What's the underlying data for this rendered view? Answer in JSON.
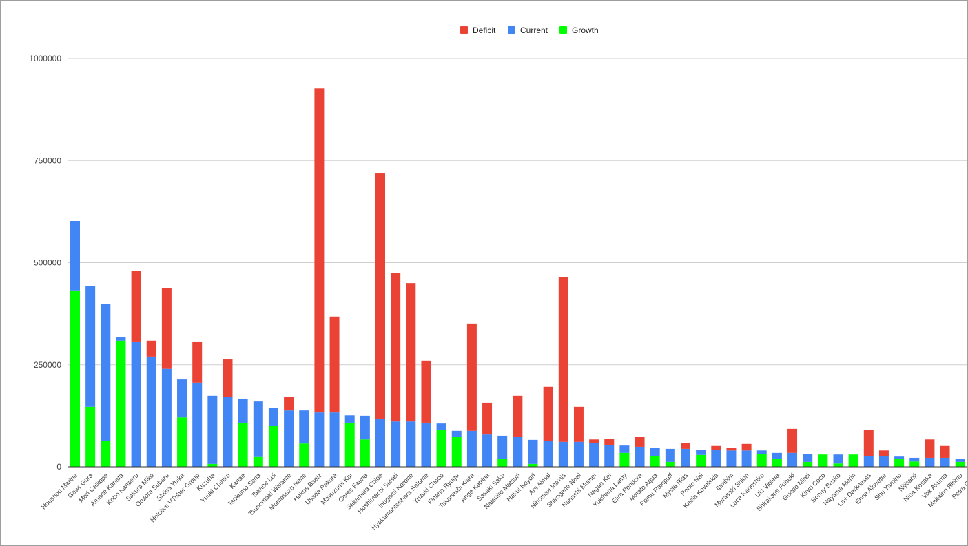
{
  "chart_data": {
    "type": "bar",
    "stacked": true,
    "title": "",
    "xlabel": "",
    "ylabel": "",
    "ylim": [
      0,
      1000000
    ],
    "yticks": [
      "0",
      "250000",
      "500000",
      "750000",
      "1000000"
    ],
    "ytick_values": [
      0,
      250000,
      500000,
      750000,
      1000000
    ],
    "grid": true,
    "legend_position": "top-center",
    "categories": [
      "Houshou Marine",
      "Gawr Gura",
      "Mori Calliope",
      "Amane Kanata",
      "Kobo Kanaeru",
      "Sakura Miko",
      "Oozora Subaru",
      "Shiina Yuika",
      "Hololive VTuber Group",
      "Kuzuha",
      "Yuuki Chihiro",
      "Kanae",
      "Tsukumo Sana",
      "Takane Lui",
      "Tsunomaki Watame",
      "Momosuzu Nene",
      "Hakos Baelz",
      "Usada Pekora",
      "Mayuzumi Kai",
      "Ceres Fauna",
      "Sakamata Chloe",
      "Hoshimachi Suisei",
      "Inugami Korone",
      "Hyakumantenbara Salome",
      "Yuzuki Choco",
      "Finana Ryugu",
      "Takanashi Kiara",
      "Ange Katrina",
      "Sasaki Saku",
      "Natsuiro Matsuri",
      "Hakui Koyori",
      "Ars Almal",
      "Ninomae Ina'nis",
      "Shirogane Noel",
      "Nanashi Mumei",
      "Nagao Kei",
      "Yukihana Lamy",
      "Elira Pendora",
      "Minato Aqua",
      "Pomu Rainpuff",
      "Mysta Rias",
      "Ponto Nei",
      "Kaela Kovalskia",
      "Ibrahim",
      "Murasaki Shion",
      "Luca Kaneshiro",
      "Uki Violeta",
      "Shirakami Fubuki",
      "Gundo Mirei",
      "Kiryu Coco",
      "Sonny Brisko",
      "Hayama Marin",
      "La+ Darknesss",
      "Enna Alouette",
      "Shu Yamino",
      "Nijisanji",
      "Nina Kosaka",
      "Vox Akuma",
      "Makaino Ririmu",
      "Petra Gurin"
    ],
    "series": [
      {
        "name": "Growth",
        "color": "#00ff00",
        "values": [
          432000,
          147000,
          64000,
          309000,
          0,
          0,
          0,
          121000,
          0,
          7000,
          0,
          108000,
          24000,
          101000,
          0,
          57000,
          0,
          0,
          108000,
          67000,
          0,
          0,
          0,
          0,
          91000,
          74000,
          0,
          0,
          19000,
          0,
          7000,
          0,
          0,
          0,
          0,
          0,
          34000,
          0,
          27000,
          12000,
          0,
          29000,
          0,
          0,
          0,
          32000,
          19000,
          0,
          12000,
          30000,
          8000,
          30000,
          0,
          0,
          19000,
          13000,
          0,
          0,
          12000,
          10000
        ]
      },
      {
        "name": "Current",
        "color": "#4285f4",
        "values": [
          170000,
          295000,
          334000,
          8000,
          307000,
          270000,
          240000,
          93000,
          206000,
          167000,
          172000,
          59000,
          136000,
          44000,
          138000,
          81000,
          133000,
          133000,
          18000,
          58000,
          118000,
          111000,
          111000,
          108000,
          15000,
          14000,
          88000,
          79000,
          57000,
          74000,
          59000,
          64000,
          61000,
          61000,
          59000,
          54000,
          18000,
          49000,
          20000,
          32000,
          44000,
          13000,
          42000,
          40000,
          40000,
          8000,
          15000,
          34000,
          20000,
          0,
          22000,
          0,
          27000,
          27000,
          6000,
          9000,
          22000,
          22000,
          8000,
          8000
        ]
      },
      {
        "name": "Deficit",
        "color": "#ea4335",
        "values": [
          0,
          0,
          0,
          0,
          172000,
          39000,
          197000,
          0,
          101000,
          0,
          91000,
          0,
          0,
          0,
          34000,
          0,
          794000,
          235000,
          0,
          0,
          602000,
          363000,
          339000,
          152000,
          0,
          0,
          263000,
          78000,
          0,
          100000,
          0,
          132000,
          403000,
          86000,
          8000,
          15000,
          0,
          25000,
          0,
          0,
          15000,
          0,
          9000,
          6000,
          16000,
          0,
          0,
          59000,
          0,
          0,
          0,
          0,
          64000,
          13000,
          0,
          0,
          45000,
          29000,
          0,
          0
        ]
      }
    ],
    "legend": [
      "Deficit",
      "Current",
      "Growth"
    ]
  }
}
